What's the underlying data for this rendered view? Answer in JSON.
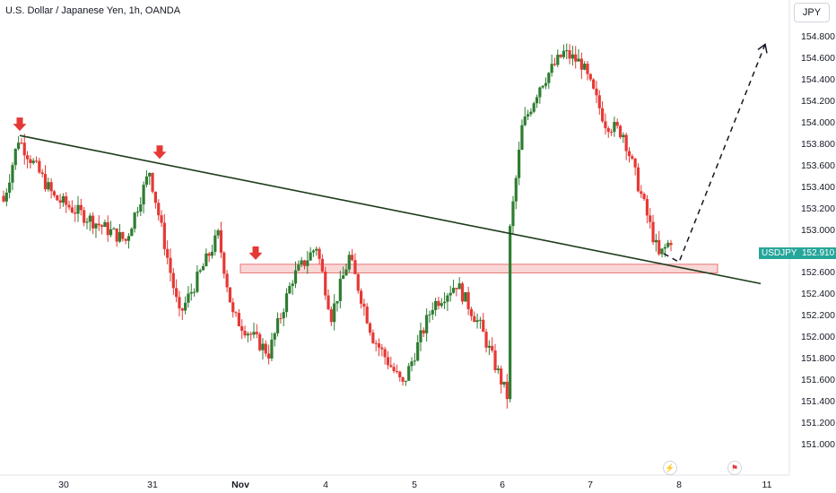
{
  "header": {
    "title": "U.S. Dollar / Japanese Yen, 1h, OANDA",
    "currency": "JPY"
  },
  "price_badge": {
    "symbol": "USDJPY",
    "price": "152.910"
  },
  "chart_data": {
    "type": "candlestick",
    "ylim": [
      151.0,
      154.8
    ],
    "yticks": [
      "154.800",
      "154.600",
      "154.400",
      "154.200",
      "154.000",
      "153.800",
      "153.600",
      "153.400",
      "153.200",
      "153.000",
      "152.800",
      "152.600",
      "152.400",
      "152.200",
      "152.000",
      "151.800",
      "151.600",
      "151.400",
      "151.200",
      "151.000"
    ],
    "xticks": [
      "30",
      "31",
      "Nov",
      "4",
      "5",
      "6",
      "7",
      "8",
      "11"
    ],
    "colors": {
      "up": "#2e7d32",
      "down": "#e53935",
      "trendline": "#1b3b1b",
      "zone": "#f8c6c6"
    },
    "segments": [
      {
        "from": 153.15,
        "to": 153.85,
        "n": 6
      },
      {
        "from": 153.85,
        "to": 153.3,
        "n": 12
      },
      {
        "from": 153.3,
        "to": 153.1,
        "n": 12
      },
      {
        "from": 153.1,
        "to": 152.9,
        "n": 12
      },
      {
        "from": 152.9,
        "to": 153.55,
        "n": 8
      },
      {
        "from": 153.55,
        "to": 152.2,
        "n": 10
      },
      {
        "from": 152.2,
        "to": 152.6,
        "n": 7
      },
      {
        "from": 152.6,
        "to": 152.95,
        "n": 6
      },
      {
        "from": 152.95,
        "to": 152.2,
        "n": 5
      },
      {
        "from": 152.2,
        "to": 151.85,
        "n": 12
      },
      {
        "from": 151.85,
        "to": 152.55,
        "n": 8
      },
      {
        "from": 152.55,
        "to": 152.85,
        "n": 8
      },
      {
        "from": 152.85,
        "to": 152.2,
        "n": 5
      },
      {
        "from": 152.2,
        "to": 152.75,
        "n": 6
      },
      {
        "from": 152.75,
        "to": 152.0,
        "n": 8
      },
      {
        "from": 152.0,
        "to": 151.55,
        "n": 10
      },
      {
        "from": 151.55,
        "to": 152.3,
        "n": 10
      },
      {
        "from": 152.3,
        "to": 152.5,
        "n": 8
      },
      {
        "from": 152.5,
        "to": 152.1,
        "n": 8
      },
      {
        "from": 152.1,
        "to": 151.45,
        "n": 9
      },
      {
        "from": 151.45,
        "to": 153.0,
        "n": 1
      },
      {
        "from": 153.0,
        "to": 153.95,
        "n": 4
      },
      {
        "from": 153.95,
        "to": 154.35,
        "n": 6
      },
      {
        "from": 154.35,
        "to": 154.65,
        "n": 8
      },
      {
        "from": 154.65,
        "to": 154.55,
        "n": 6
      },
      {
        "from": 154.55,
        "to": 154.0,
        "n": 8
      },
      {
        "from": 154.0,
        "to": 153.9,
        "n": 6
      },
      {
        "from": 153.9,
        "to": 152.75,
        "n": 12
      },
      {
        "from": 152.75,
        "to": 152.91,
        "n": 4
      }
    ],
    "trendline": {
      "x1": 22,
      "y1": 153.88,
      "x2": 848,
      "y2": 152.5
    },
    "zone": {
      "x1": 268,
      "x2": 800,
      "y_top": 152.68,
      "y_bottom": 152.6
    },
    "projection": [
      {
        "x": 740,
        "y": 152.78
      },
      {
        "x": 757,
        "y": 152.7
      },
      {
        "x": 853,
        "y": 154.73
      }
    ],
    "markers": [
      {
        "x": 22,
        "y": 153.88
      },
      {
        "x": 178,
        "y": 153.62
      },
      {
        "x": 285,
        "y": 152.68
      }
    ]
  }
}
